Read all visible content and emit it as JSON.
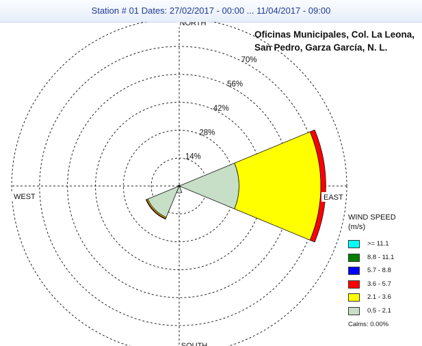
{
  "header": {
    "station_label": "Station #",
    "station": "01",
    "dates_label": "Dates:",
    "dates": "27/02/2017 - 00:00 ... 11/04/2017 - 09:00"
  },
  "location": {
    "line1": "Oficinas Municipales, Col. La Leona,",
    "line2": "San Pedro,  Garza García, N. L."
  },
  "chart_data": {
    "type": "wind-rose",
    "directions": [
      "NORTH",
      "EAST",
      "SOUTH",
      "WEST"
    ],
    "radial_ticks": [
      14,
      28,
      42,
      56,
      70
    ],
    "radial_tick_labels": [
      "14%",
      "28%",
      "42%",
      "56%",
      "70%"
    ],
    "radial_max": 84,
    "sector_width_deg": 45,
    "speed_bins": [
      {
        "label": ">= 11.1",
        "color": "#00ffff"
      },
      {
        "label": "8.8 - 11.1",
        "color": "#007f00"
      },
      {
        "label": "5.7 - 8.8",
        "color": "#0000ff"
      },
      {
        "label": "3.6 - 5.7",
        "color": "#ff0000"
      },
      {
        "label": "2.1 - 3.6",
        "color": "#ffff00"
      },
      {
        "label": "0.5 - 2.1",
        "color": "#c6dfc6"
      }
    ],
    "sectors": [
      {
        "direction": "N",
        "heading_deg": 0,
        "values": {
          "0.5 - 2.1": 0.4
        }
      },
      {
        "direction": "NE",
        "heading_deg": 45,
        "values": {
          "0.5 - 2.1": 0.5
        }
      },
      {
        "direction": "E",
        "heading_deg": 90,
        "values": {
          "0.5 - 2.1": 30.0,
          "2.1 - 3.6": 41.0,
          "3.6 - 5.7": 2.5
        }
      },
      {
        "direction": "SE",
        "heading_deg": 135,
        "values": {
          "0.5 - 2.1": 0.8
        }
      },
      {
        "direction": "S",
        "heading_deg": 180,
        "values": {
          "0.5 - 2.1": 3.5
        }
      },
      {
        "direction": "SW",
        "heading_deg": 225,
        "values": {
          "0.5 - 2.1": 17.0,
          "2.1 - 3.6": 0.6,
          "3.6 - 5.7": 0.4
        }
      },
      {
        "direction": "W",
        "heading_deg": 270,
        "values": {
          "0.5 - 2.1": 0.6
        }
      },
      {
        "direction": "NW",
        "heading_deg": 315,
        "values": {
          "0.5 - 2.1": 0.4
        }
      }
    ]
  },
  "legend": {
    "title_line1": "WIND SPEED",
    "title_line2": "(m/s)",
    "calms": "Calms: 0.00%"
  }
}
